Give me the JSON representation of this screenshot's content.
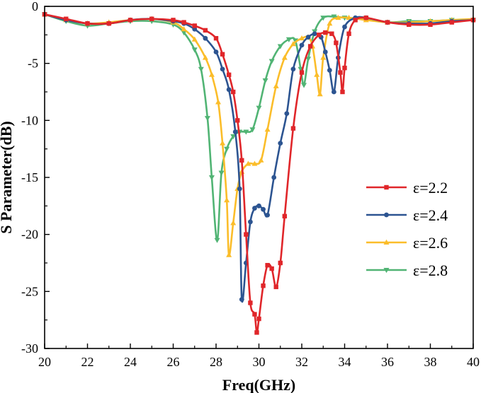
{
  "chart_data": {
    "type": "line",
    "title": "",
    "xlabel": "Freq(GHz)",
    "ylabel": "S Parameter(dB)",
    "xlim": [
      20,
      40
    ],
    "ylim": [
      -30,
      0
    ],
    "xticks": [
      20,
      22,
      24,
      26,
      28,
      30,
      32,
      34,
      36,
      38,
      40
    ],
    "yticks": [
      0,
      -5,
      -10,
      -15,
      -20,
      -25,
      -30
    ],
    "grid": false,
    "legend_position": "right-center",
    "series": [
      {
        "name": "ε=2.2",
        "color": "#e0262a",
        "marker": "square",
        "x": [
          20,
          21,
          22,
          23,
          24,
          25,
          26,
          26.5,
          27,
          27.5,
          28,
          28.3,
          28.6,
          28.8,
          29,
          29.2,
          29.4,
          29.6,
          29.8,
          29.9,
          30,
          30.2,
          30.4,
          30.6,
          30.8,
          31,
          31.2,
          31.6,
          32,
          32.4,
          32.8,
          33.1,
          33.4,
          33.6,
          33.8,
          33.9,
          34,
          34.2,
          34.5,
          35,
          36,
          37,
          38,
          39,
          40
        ],
        "y": [
          -0.7,
          -1.1,
          -1.5,
          -1.5,
          -1.2,
          -1.1,
          -1.2,
          -1.4,
          -1.7,
          -2.1,
          -2.8,
          -4.2,
          -6.0,
          -7.5,
          -10.0,
          -13.5,
          -20.0,
          -26.0,
          -27.0,
          -28.6,
          -27.4,
          -24.5,
          -22.7,
          -23.0,
          -24.6,
          -22.5,
          -18.4,
          -10.7,
          -5.8,
          -3.5,
          -2.5,
          -2.3,
          -2.4,
          -3.2,
          -5.8,
          -7.5,
          -5.4,
          -2.4,
          -1.2,
          -1.0,
          -1.4,
          -1.6,
          -1.6,
          -1.4,
          -1.2
        ]
      },
      {
        "name": "ε=2.4",
        "color": "#2c5491",
        "marker": "circle",
        "x": [
          20,
          21,
          22,
          23,
          24,
          25,
          26,
          26.5,
          27,
          27.5,
          28,
          28.3,
          28.6,
          28.9,
          29.1,
          29.2,
          29.4,
          29.6,
          29.8,
          30,
          30.2,
          30.4,
          30.7,
          31,
          31.3,
          31.6,
          32,
          32.3,
          32.6,
          32.9,
          33.1,
          33.3,
          33.5,
          33.7,
          34,
          34.5,
          35,
          36,
          37,
          38,
          39,
          40
        ],
        "y": [
          -0.7,
          -1.2,
          -1.5,
          -1.5,
          -1.2,
          -1.1,
          -1.3,
          -1.5,
          -2.0,
          -2.8,
          -4.0,
          -5.5,
          -7.3,
          -11.0,
          -16.0,
          -25.7,
          -22.5,
          -18.9,
          -17.7,
          -17.5,
          -17.8,
          -18.3,
          -15.0,
          -12.0,
          -9.4,
          -5.5,
          -3.4,
          -2.7,
          -2.4,
          -2.7,
          -4.0,
          -5.6,
          -7.5,
          -4.5,
          -1.8,
          -1.0,
          -1.0,
          -1.4,
          -1.5,
          -1.5,
          -1.3,
          -1.2
        ]
      },
      {
        "name": "ε=2.6",
        "color": "#fbbd2a",
        "marker": "triangle-up",
        "x": [
          20,
          21,
          22,
          23,
          24,
          25,
          26,
          26.5,
          27,
          27.5,
          27.8,
          28.1,
          28.3,
          28.5,
          28.6,
          28.8,
          29,
          29.2,
          29.5,
          29.8,
          30.1,
          30.4,
          30.8,
          31.2,
          31.6,
          32,
          32.3,
          32.5,
          32.7,
          32.85,
          33,
          33.3,
          33.7,
          34.2,
          35,
          36,
          37,
          38,
          39,
          40
        ],
        "y": [
          -0.7,
          -1.2,
          -1.5,
          -1.4,
          -1.2,
          -1.1,
          -1.4,
          -2.0,
          -2.9,
          -4.5,
          -6.0,
          -8.4,
          -12.0,
          -17.0,
          -21.8,
          -19.0,
          -16.0,
          -14.5,
          -13.8,
          -13.8,
          -13.5,
          -10.8,
          -7.0,
          -4.5,
          -3.3,
          -2.8,
          -2.7,
          -3.5,
          -6.0,
          -7.7,
          -4.5,
          -1.5,
          -1.0,
          -1.0,
          -1.2,
          -1.4,
          -1.4,
          -1.3,
          -1.2,
          -1.1
        ]
      },
      {
        "name": "ε=2.8",
        "color": "#51b474",
        "marker": "triangle-down",
        "x": [
          20,
          21,
          22,
          23,
          24,
          25,
          26,
          26.5,
          27,
          27.3,
          27.6,
          27.8,
          28.05,
          28.25,
          28.5,
          28.8,
          29.1,
          29.4,
          29.7,
          30,
          30.3,
          30.6,
          31,
          31.4,
          31.7,
          31.95,
          32.1,
          32.3,
          32.6,
          33,
          33.5,
          34,
          35,
          36,
          37,
          38,
          39,
          40
        ],
        "y": [
          -0.7,
          -1.3,
          -1.7,
          -1.5,
          -1.3,
          -1.3,
          -1.6,
          -2.3,
          -3.8,
          -5.5,
          -9.8,
          -15.0,
          -20.5,
          -14.6,
          -12.5,
          -11.4,
          -11.0,
          -11.0,
          -10.8,
          -8.9,
          -6.5,
          -4.8,
          -3.5,
          -2.9,
          -3.0,
          -5.5,
          -6.9,
          -4.6,
          -2.2,
          -1.0,
          -0.9,
          -1.0,
          -1.1,
          -1.4,
          -1.3,
          -1.3,
          -1.2,
          -1.2
        ]
      }
    ]
  }
}
